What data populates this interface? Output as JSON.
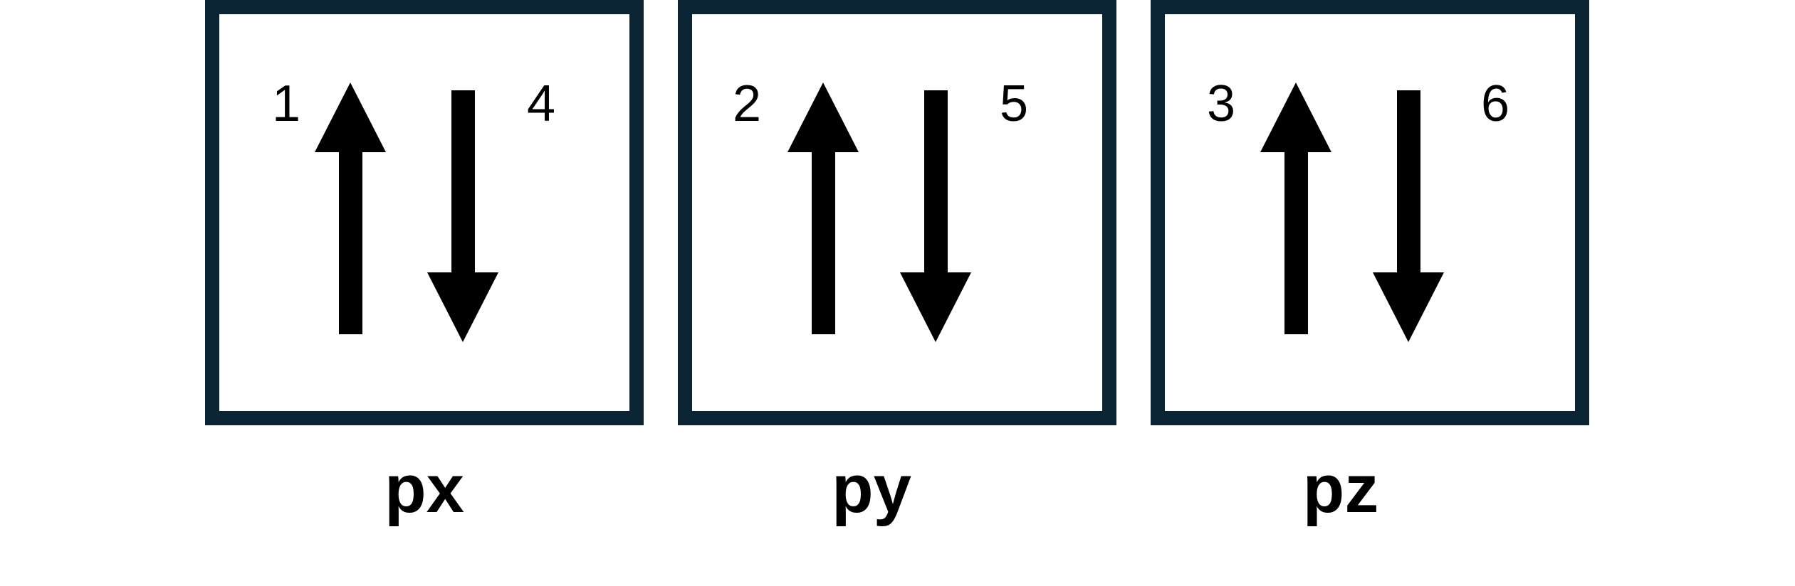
{
  "colors": {
    "box_border": "#0b2535",
    "arrow": "#000000",
    "text": "#000000"
  },
  "orbitals": [
    {
      "label": "px",
      "up_electron": "1",
      "down_electron": "4",
      "up_arrow_icon": "arrow-up-icon",
      "down_arrow_icon": "arrow-down-icon"
    },
    {
      "label": "py",
      "up_electron": "2",
      "down_electron": "5",
      "up_arrow_icon": "arrow-up-icon",
      "down_arrow_icon": "arrow-down-icon"
    },
    {
      "label": "pz",
      "up_electron": "3",
      "down_electron": "6",
      "up_arrow_icon": "arrow-up-icon",
      "down_arrow_icon": "arrow-down-icon"
    }
  ]
}
